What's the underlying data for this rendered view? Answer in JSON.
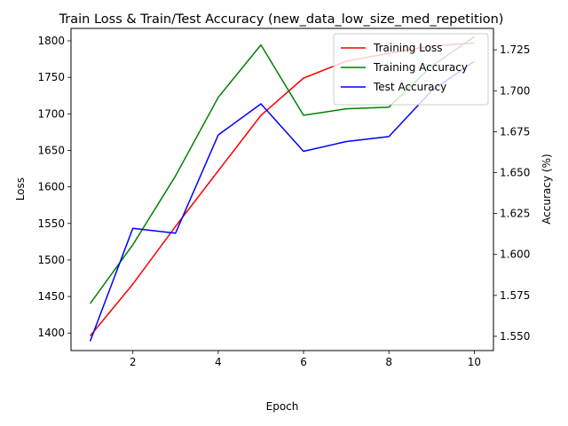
{
  "chart_data": {
    "type": "line",
    "title": "Train Loss & Train/Test Accuracy (new_data_low_size_med_repetition)",
    "xlabel": "Epoch",
    "ylabel_left": "Loss",
    "ylabel_right": "Accuracy (%)",
    "x": [
      1,
      2,
      3,
      4,
      5,
      6,
      7,
      8,
      9,
      10
    ],
    "xlim": [
      0.55,
      10.45
    ],
    "xticks": [
      2,
      4,
      6,
      8,
      10
    ],
    "ylim_left": [
      1376,
      1817
    ],
    "yticks_left": [
      1400,
      1450,
      1500,
      1550,
      1600,
      1650,
      1700,
      1750,
      1800
    ],
    "ylim_right": [
      1.5413,
      1.7381
    ],
    "yticks_right": [
      "1.550",
      "1.575",
      "1.600",
      "1.625",
      "1.650",
      "1.675",
      "1.700",
      "1.725"
    ],
    "grid": false,
    "legend_position": "top-right",
    "series": [
      {
        "name": "Training Loss",
        "axis": "left",
        "color": "#ff0000",
        "values": [
          1396,
          1467,
          1546,
          1622,
          1698,
          1749,
          1772,
          1783,
          1793,
          1797
        ]
      },
      {
        "name": "Training Accuracy",
        "axis": "right",
        "color": "#008000",
        "values": [
          1.57,
          1.606,
          1.648,
          1.696,
          1.728,
          1.685,
          1.689,
          1.69,
          1.715,
          1.733
        ]
      },
      {
        "name": "Test Accuracy",
        "axis": "right",
        "color": "#0000ff",
        "values": [
          1.547,
          1.616,
          1.613,
          1.673,
          1.692,
          1.663,
          1.669,
          1.672,
          1.7,
          1.718
        ]
      }
    ]
  }
}
